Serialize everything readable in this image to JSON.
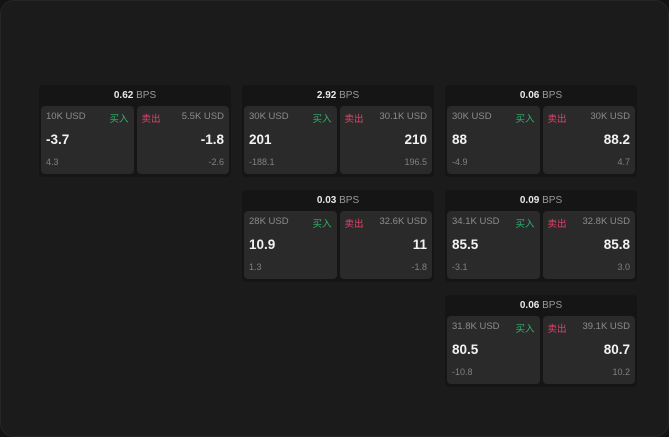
{
  "grid": [
    [
      {
        "spread": "0.62",
        "unit": "BPS",
        "buy": {
          "size": "10K USD",
          "label": "买入",
          "price": "-3.7",
          "change": "4.3"
        },
        "sell": {
          "size": "5.5K USD",
          "label": "卖出",
          "price": "-1.8",
          "change": "-2.6"
        }
      },
      {
        "spread": "2.92",
        "unit": "BPS",
        "buy": {
          "size": "30K USD",
          "label": "买入",
          "price": "201",
          "change": "-188.1"
        },
        "sell": {
          "size": "30.1K USD",
          "label": "卖出",
          "price": "210",
          "change": "196.5"
        }
      },
      {
        "spread": "0.06",
        "unit": "BPS",
        "buy": {
          "size": "30K USD",
          "label": "买入",
          "price": "88",
          "change": "-4.9"
        },
        "sell": {
          "size": "30K USD",
          "label": "卖出",
          "price": "88.2",
          "change": "4.7"
        }
      }
    ],
    [
      null,
      {
        "spread": "0.03",
        "unit": "BPS",
        "buy": {
          "size": "28K USD",
          "label": "买入",
          "price": "10.9",
          "change": "1.3"
        },
        "sell": {
          "size": "32.6K USD",
          "label": "卖出",
          "price": "11",
          "change": "-1.8"
        }
      },
      {
        "spread": "0.09",
        "unit": "BPS",
        "buy": {
          "size": "34.1K USD",
          "label": "买入",
          "price": "85.5",
          "change": "-3.1"
        },
        "sell": {
          "size": "32.8K USD",
          "label": "卖出",
          "price": "85.8",
          "change": "3.0"
        }
      }
    ],
    [
      null,
      null,
      {
        "spread": "0.06",
        "unit": "BPS",
        "buy": {
          "size": "31.8K USD",
          "label": "买入",
          "price": "80.5",
          "change": "-10.8"
        },
        "sell": {
          "size": "39.1K USD",
          "label": "卖出",
          "price": "80.7",
          "change": "10.2"
        }
      }
    ]
  ],
  "colors": {
    "buy": "#2fb36b",
    "sell": "#e0446a",
    "card": "#2a2a2a",
    "background": "#1b1b1b"
  }
}
